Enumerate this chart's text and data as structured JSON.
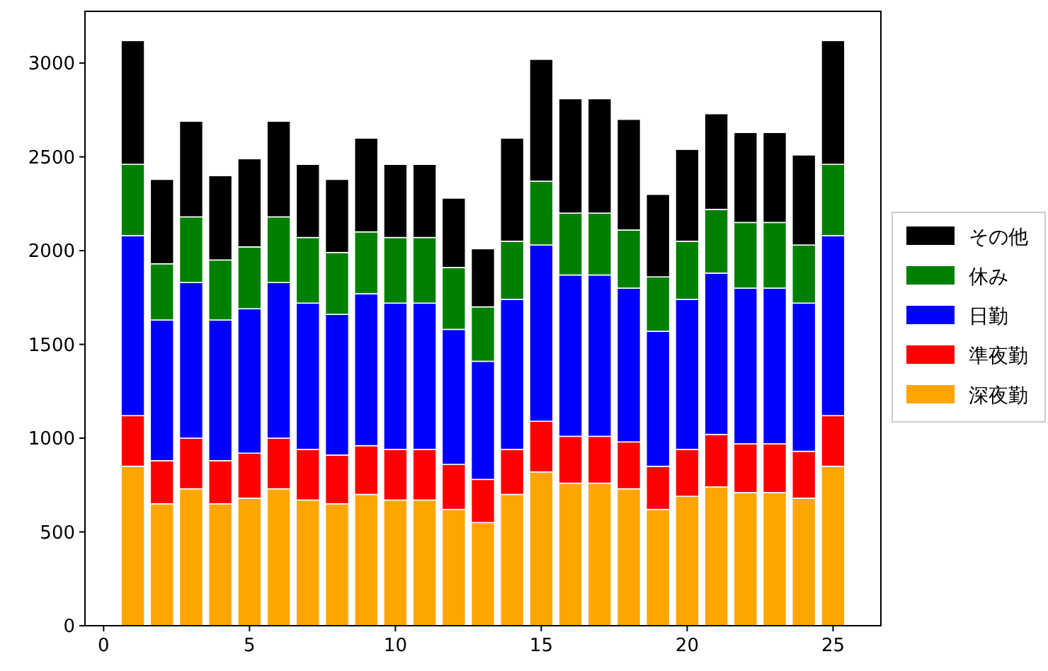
{
  "chart_data": {
    "type": "bar",
    "stacked": true,
    "x": [
      1,
      2,
      3,
      4,
      5,
      6,
      7,
      8,
      9,
      10,
      11,
      12,
      13,
      14,
      15,
      16,
      17,
      18,
      19,
      20,
      21,
      22,
      23,
      24,
      25
    ],
    "series": [
      {
        "name": "深夜勤",
        "color": "#ffa500",
        "values": [
          850,
          650,
          730,
          650,
          680,
          730,
          670,
          650,
          700,
          670,
          670,
          620,
          550,
          700,
          820,
          760,
          760,
          730,
          620,
          690,
          740,
          710,
          710,
          680,
          850
        ]
      },
      {
        "name": "準夜勤",
        "color": "#ff0000",
        "values": [
          270,
          230,
          270,
          230,
          240,
          270,
          270,
          260,
          260,
          270,
          270,
          240,
          230,
          240,
          270,
          250,
          250,
          250,
          230,
          250,
          280,
          260,
          260,
          250,
          270
        ]
      },
      {
        "name": "日勤",
        "color": "#0000ff",
        "values": [
          960,
          750,
          830,
          750,
          770,
          830,
          780,
          750,
          810,
          780,
          780,
          720,
          630,
          800,
          940,
          860,
          860,
          820,
          720,
          800,
          860,
          830,
          830,
          790,
          960
        ]
      },
      {
        "name": "休み",
        "color": "#008000",
        "values": [
          380,
          300,
          350,
          320,
          330,
          350,
          350,
          330,
          330,
          350,
          350,
          330,
          290,
          310,
          340,
          330,
          330,
          310,
          290,
          310,
          340,
          350,
          350,
          310,
          380
        ]
      },
      {
        "name": "その他",
        "color": "#000000",
        "values": [
          660,
          450,
          510,
          450,
          470,
          510,
          390,
          390,
          500,
          390,
          390,
          370,
          310,
          550,
          650,
          610,
          610,
          590,
          440,
          490,
          510,
          480,
          480,
          480,
          660
        ]
      }
    ],
    "xlim": [
      -0.64,
      26.64
    ],
    "xticks": [
      0,
      5,
      10,
      15,
      20,
      25
    ],
    "ylim": [
      0,
      3276
    ],
    "yticks": [
      0,
      500,
      1000,
      1500,
      2000,
      2500,
      3000
    ],
    "grid": false,
    "legend": "right"
  }
}
